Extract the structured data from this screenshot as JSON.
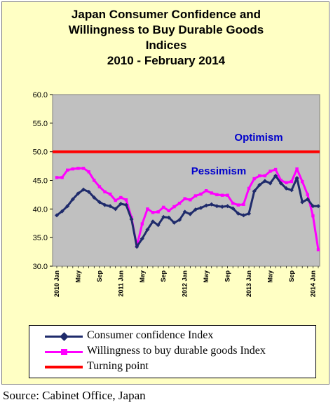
{
  "chart_data": {
    "type": "line",
    "title": [
      "Japan Consumer Confidence and",
      "Willingness to Buy Durable Goods",
      "Indices",
      "2010 -  February 2014"
    ],
    "ylim": [
      30,
      60
    ],
    "yticks": [
      "60.0",
      "55.0",
      "50.0",
      "45.0",
      "40.0",
      "35.0",
      "30.0"
    ],
    "ytick_values": [
      60,
      55,
      50,
      45,
      40,
      35,
      30
    ],
    "grid": false,
    "x_count": 50,
    "xtick_labels": [
      {
        "i": 0,
        "label": "2010 Jan"
      },
      {
        "i": 4,
        "label": "May"
      },
      {
        "i": 8,
        "label": "Sep"
      },
      {
        "i": 12,
        "label": "2011 Jan"
      },
      {
        "i": 16,
        "label": "May"
      },
      {
        "i": 20,
        "label": "Sep"
      },
      {
        "i": 24,
        "label": "2012 Jan"
      },
      {
        "i": 28,
        "label": "May"
      },
      {
        "i": 32,
        "label": "Sep"
      },
      {
        "i": 36,
        "label": "2013 Jan"
      },
      {
        "i": 40,
        "label": "May"
      },
      {
        "i": 44,
        "label": "Sep"
      },
      {
        "i": 48,
        "label": "2014 Jan"
      }
    ],
    "annotations": {
      "optimism": "Optimism",
      "pessimism": "Pessimism"
    },
    "series": [
      {
        "name": "Consumer confidence Index",
        "color": "#1f2b6b",
        "marker": "diamond",
        "values": [
          38.9,
          39.6,
          40.5,
          41.7,
          42.7,
          43.4,
          43.0,
          42.0,
          41.2,
          40.7,
          40.5,
          40.0,
          40.9,
          40.7,
          38.2,
          33.4,
          34.8,
          36.4,
          37.8,
          37.2,
          38.6,
          38.5,
          37.6,
          38.1,
          39.5,
          39.1,
          39.9,
          40.2,
          40.6,
          40.8,
          40.5,
          40.4,
          40.5,
          40.1,
          39.2,
          38.9,
          39.2,
          43.1,
          44.2,
          44.9,
          44.5,
          45.8,
          44.5,
          43.6,
          43.3,
          45.4,
          41.2,
          41.7,
          40.5,
          40.5
        ]
      },
      {
        "name": "Willingness to buy durable goods Index",
        "color": "#ff00ff",
        "marker": "square",
        "values": [
          45.5,
          45.5,
          46.8,
          47.0,
          47.1,
          47.1,
          46.5,
          45.0,
          43.9,
          43.0,
          42.6,
          41.5,
          42.0,
          41.6,
          38.5,
          33.5,
          37.4,
          40.0,
          39.4,
          39.5,
          40.3,
          39.7,
          40.4,
          41.0,
          41.8,
          41.6,
          42.3,
          42.6,
          43.2,
          42.8,
          42.5,
          42.4,
          42.4,
          41.0,
          40.7,
          40.8,
          43.6,
          45.3,
          45.8,
          45.8,
          46.6,
          46.9,
          45.0,
          44.6,
          44.8,
          47.0,
          44.8,
          42.5,
          38.8,
          32.9
        ]
      },
      {
        "name": "Turning point",
        "color": "#ff0000",
        "constant": 50
      }
    ]
  },
  "source": "Source: Cabinet Office, Japan"
}
